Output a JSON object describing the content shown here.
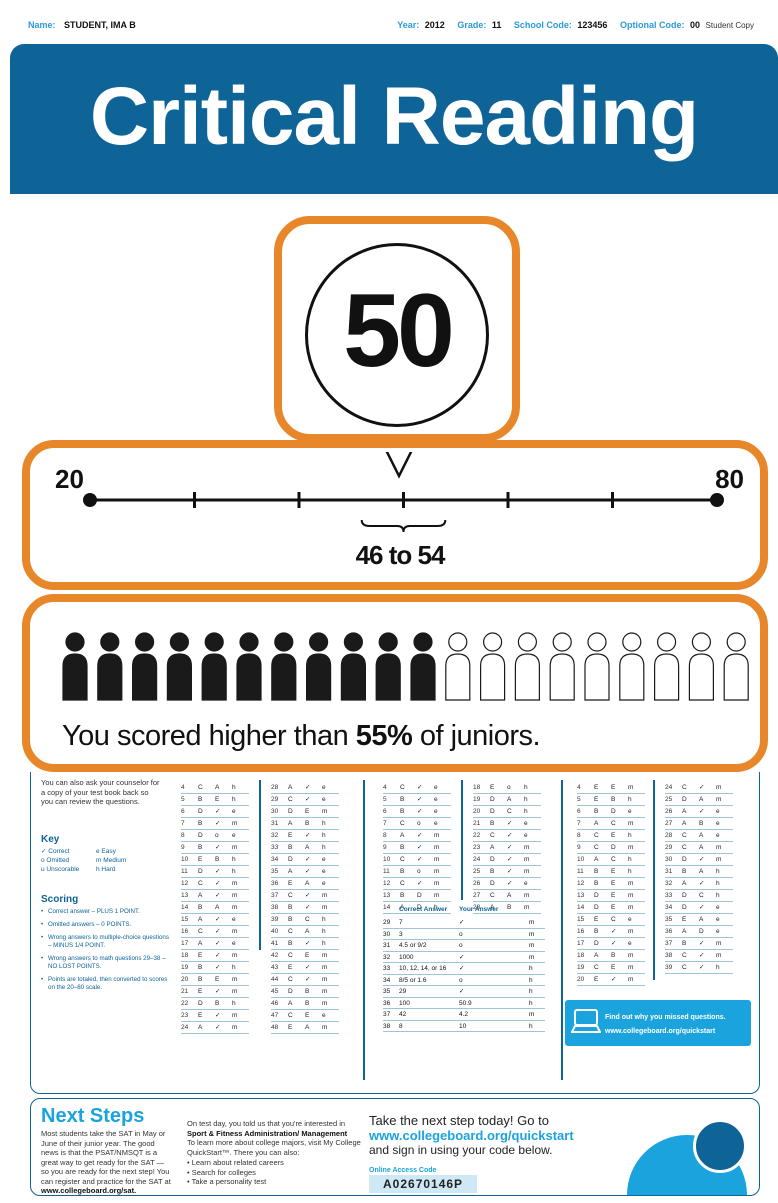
{
  "meta": {
    "name_label": "Name:",
    "name_value": "STUDENT, IMA B",
    "year_label": "Year:",
    "year_value": "2012",
    "grade_label": "Grade:",
    "grade_value": "11",
    "school_label": "School Code:",
    "school_value": "123456",
    "optional_label": "Optional Code:",
    "optional_value": "00",
    "copy_label": "Student Copy"
  },
  "banner": {
    "title": "Critical Reading"
  },
  "score": {
    "value": "50"
  },
  "range": {
    "min": "20",
    "max": "80",
    "text": "46 to 54",
    "score_value": 50,
    "low": 46,
    "high": 54
  },
  "percentile": {
    "filled": 11,
    "total": 20,
    "text_before": "You scored higher than ",
    "text_bold": "55%",
    "text_after": " of juniors."
  },
  "answers": {
    "intro": "You can also ask your counselor for a copy of your test book back so you can review the questions.",
    "key_title": "Key",
    "key": [
      [
        "✓ Correct",
        "e Easy"
      ],
      [
        "o Omitted",
        "m Medium"
      ],
      [
        "u Unscorable",
        "h Hard"
      ]
    ],
    "scoring_title": "Scoring",
    "scoring": [
      "Correct answer – PLUS 1 POINT.",
      "Omitted answers – 0 POINTS.",
      "Wrong answers to multiple-choice questions – MINUS 1/4 POINT.",
      "Wrong answers to math questions 29–38 – NO LOST POINTS.",
      "Points are totaled, then converted to scores on the 20–80 scale."
    ],
    "col1": [
      [
        "4",
        "C",
        "A",
        "h"
      ],
      [
        "5",
        "B",
        "E",
        "h"
      ],
      [
        "6",
        "D",
        "✓",
        "e"
      ],
      [
        "7",
        "B",
        "✓",
        "m"
      ],
      [
        "8",
        "D",
        "o",
        "e"
      ],
      [
        "9",
        "B",
        "✓",
        "m"
      ],
      [
        "10",
        "E",
        "B",
        "h"
      ],
      [
        "11",
        "D",
        "✓",
        "h"
      ],
      [
        "12",
        "C",
        "✓",
        "m"
      ],
      [
        "13",
        "A",
        "✓",
        "m"
      ],
      [
        "14",
        "B",
        "A",
        "m"
      ],
      [
        "15",
        "A",
        "✓",
        "e"
      ],
      [
        "16",
        "C",
        "✓",
        "m"
      ],
      [
        "17",
        "A",
        "✓",
        "e"
      ],
      [
        "18",
        "E",
        "✓",
        "m"
      ],
      [
        "19",
        "B",
        "✓",
        "h"
      ],
      [
        "20",
        "B",
        "E",
        "m"
      ],
      [
        "21",
        "E",
        "✓",
        "m"
      ],
      [
        "22",
        "D",
        "B",
        "h"
      ],
      [
        "23",
        "E",
        "✓",
        "m"
      ],
      [
        "24",
        "A",
        "✓",
        "m"
      ]
    ],
    "col2": [
      [
        "28",
        "A",
        "✓",
        "e"
      ],
      [
        "29",
        "C",
        "✓",
        "e"
      ],
      [
        "30",
        "D",
        "E",
        "m"
      ],
      [
        "31",
        "A",
        "B",
        "h"
      ],
      [
        "32",
        "E",
        "✓",
        "h"
      ],
      [
        "33",
        "B",
        "A",
        "h"
      ],
      [
        "34",
        "D",
        "✓",
        "e"
      ],
      [
        "35",
        "A",
        "✓",
        "e"
      ],
      [
        "36",
        "E",
        "A",
        "e"
      ],
      [
        "37",
        "C",
        "✓",
        "m"
      ],
      [
        "38",
        "B",
        "✓",
        "m"
      ],
      [
        "39",
        "B",
        "C",
        "h"
      ],
      [
        "40",
        "C",
        "A",
        "h"
      ],
      [
        "41",
        "B",
        "✓",
        "h"
      ],
      [
        "42",
        "C",
        "E",
        "m"
      ],
      [
        "43",
        "E",
        "✓",
        "m"
      ],
      [
        "44",
        "C",
        "✓",
        "m"
      ],
      [
        "45",
        "D",
        "B",
        "m"
      ],
      [
        "46",
        "A",
        "B",
        "m"
      ],
      [
        "47",
        "C",
        "E",
        "e"
      ],
      [
        "48",
        "E",
        "A",
        "m"
      ]
    ],
    "col3": [
      [
        "4",
        "C",
        "✓",
        "e"
      ],
      [
        "5",
        "B",
        "✓",
        "e"
      ],
      [
        "6",
        "B",
        "✓",
        "e"
      ],
      [
        "7",
        "C",
        "o",
        "e"
      ],
      [
        "8",
        "A",
        "✓",
        "m"
      ],
      [
        "9",
        "B",
        "✓",
        "m"
      ],
      [
        "10",
        "C",
        "✓",
        "m"
      ],
      [
        "11",
        "B",
        "o",
        "m"
      ],
      [
        "12",
        "C",
        "✓",
        "m"
      ],
      [
        "13",
        "B",
        "D",
        "m"
      ],
      [
        "14",
        "A",
        "D",
        "h"
      ]
    ],
    "col4": [
      [
        "18",
        "E",
        "o",
        "h"
      ],
      [
        "19",
        "D",
        "A",
        "h"
      ],
      [
        "20",
        "D",
        "C",
        "h"
      ],
      [
        "21",
        "B",
        "✓",
        "e"
      ],
      [
        "22",
        "C",
        "✓",
        "e"
      ],
      [
        "23",
        "A",
        "✓",
        "m"
      ],
      [
        "24",
        "D",
        "✓",
        "m"
      ],
      [
        "25",
        "B",
        "✓",
        "m"
      ],
      [
        "26",
        "D",
        "✓",
        "e"
      ],
      [
        "27",
        "C",
        "A",
        "m"
      ],
      [
        "28",
        "A",
        "B",
        "m"
      ]
    ],
    "grid_header": [
      "",
      "Correct Answer",
      "Your Answer",
      ""
    ],
    "grid": [
      [
        "29",
        "7",
        "✓",
        "m"
      ],
      [
        "30",
        "3",
        "o",
        "m"
      ],
      [
        "31",
        "4.5 or 9/2",
        "o",
        "m"
      ],
      [
        "32",
        "1000",
        "✓",
        "m"
      ],
      [
        "33",
        "10, 12, 14, or 16",
        "✓",
        "h"
      ],
      [
        "34",
        "8/5 or 1.6",
        "o",
        "h"
      ],
      [
        "35",
        "29",
        "✓",
        "h"
      ],
      [
        "36",
        "100",
        "50.9",
        "h"
      ],
      [
        "37",
        "42",
        "4.2",
        "m"
      ],
      [
        "38",
        "8",
        "10",
        "h"
      ]
    ],
    "col5": [
      [
        "4",
        "E",
        "E",
        "m"
      ],
      [
        "5",
        "E",
        "B",
        "h"
      ],
      [
        "6",
        "B",
        "D",
        "e"
      ],
      [
        "7",
        "A",
        "C",
        "m"
      ],
      [
        "8",
        "C",
        "E",
        "h"
      ],
      [
        "9",
        "C",
        "D",
        "m"
      ],
      [
        "10",
        "A",
        "C",
        "h"
      ],
      [
        "11",
        "B",
        "E",
        "h"
      ],
      [
        "12",
        "B",
        "E",
        "m"
      ],
      [
        "13",
        "D",
        "E",
        "m"
      ],
      [
        "14",
        "D",
        "E",
        "m"
      ],
      [
        "15",
        "E",
        "C",
        "e"
      ],
      [
        "16",
        "B",
        "✓",
        "m"
      ],
      [
        "17",
        "D",
        "✓",
        "e"
      ],
      [
        "18",
        "A",
        "B",
        "m"
      ],
      [
        "19",
        "C",
        "E",
        "m"
      ],
      [
        "20",
        "E",
        "✓",
        "m"
      ]
    ],
    "col6": [
      [
        "24",
        "C",
        "✓",
        "m"
      ],
      [
        "25",
        "D",
        "A",
        "m"
      ],
      [
        "26",
        "A",
        "✓",
        "e"
      ],
      [
        "27",
        "A",
        "B",
        "e"
      ],
      [
        "28",
        "C",
        "A",
        "e"
      ],
      [
        "29",
        "C",
        "A",
        "m"
      ],
      [
        "30",
        "D",
        "✓",
        "m"
      ],
      [
        "31",
        "B",
        "A",
        "h"
      ],
      [
        "32",
        "A",
        "✓",
        "h"
      ],
      [
        "33",
        "D",
        "C",
        "h"
      ],
      [
        "34",
        "D",
        "✓",
        "e"
      ],
      [
        "35",
        "E",
        "A",
        "e"
      ],
      [
        "36",
        "A",
        "D",
        "e"
      ],
      [
        "37",
        "B",
        "✓",
        "m"
      ],
      [
        "38",
        "C",
        "✓",
        "m"
      ],
      [
        "39",
        "C",
        "✓",
        "h"
      ]
    ],
    "quickstart_line1": "Find out why you missed questions.",
    "quickstart_line2": "www.collegeboard.org/quickstart"
  },
  "next_steps": {
    "title": "Next Steps",
    "body": "Most students take the SAT in May or June of their junior year. The good news is that the PSAT/NMSQT is a great way to get ready for the SAT — so you are ready for the next step! You can register and practice for the SAT at",
    "body_url": "www.collegeboard.org/sat.",
    "mid_intro": "On test day, you told us that you're interested in",
    "major": "Sport & Fitness Administration/ Management",
    "mid_text": "To learn more about college majors, visit My College QuickStart™. There you can also:",
    "mid_items": [
      "Learn about related careers",
      "Search for colleges",
      "Take a personality test"
    ],
    "right_line1": "Take the next step today! Go to",
    "right_url": "www.collegeboard.org/quickstart",
    "right_line3": "and sign in using your code below.",
    "code_label": "Online Access Code",
    "code": "A02670146P"
  },
  "colors": {
    "accent_orange": "#e8862a",
    "banner_blue": "#0e6496",
    "light_blue": "#1ba3de"
  }
}
